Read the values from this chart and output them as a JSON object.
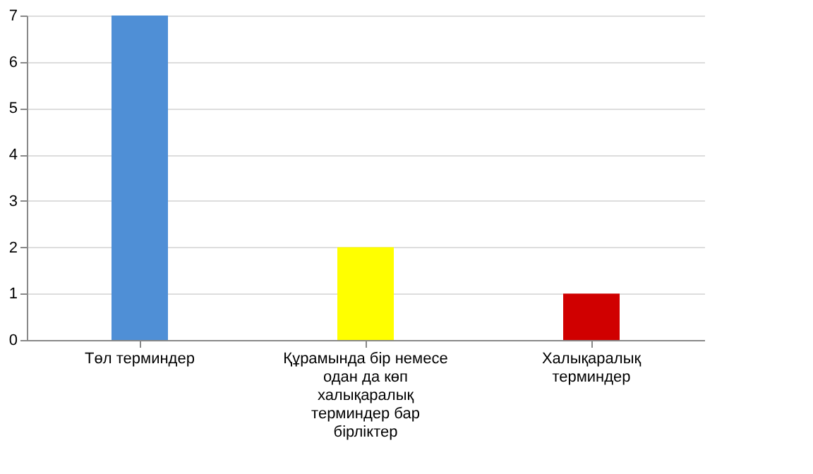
{
  "chart_data": {
    "type": "bar",
    "categories": [
      "Төл терминдер",
      "Құрамында бір немесе одан да көп халықаралық терминдер бар бірліктер",
      "Халықаралық терминдер"
    ],
    "values": [
      7,
      2,
      1
    ],
    "colors": [
      "#4f8fd6",
      "#ffff00",
      "#d00000"
    ],
    "ylim": [
      0,
      7
    ],
    "yticks": [
      0,
      1,
      2,
      3,
      4,
      5,
      6,
      7
    ],
    "grid": "y"
  }
}
